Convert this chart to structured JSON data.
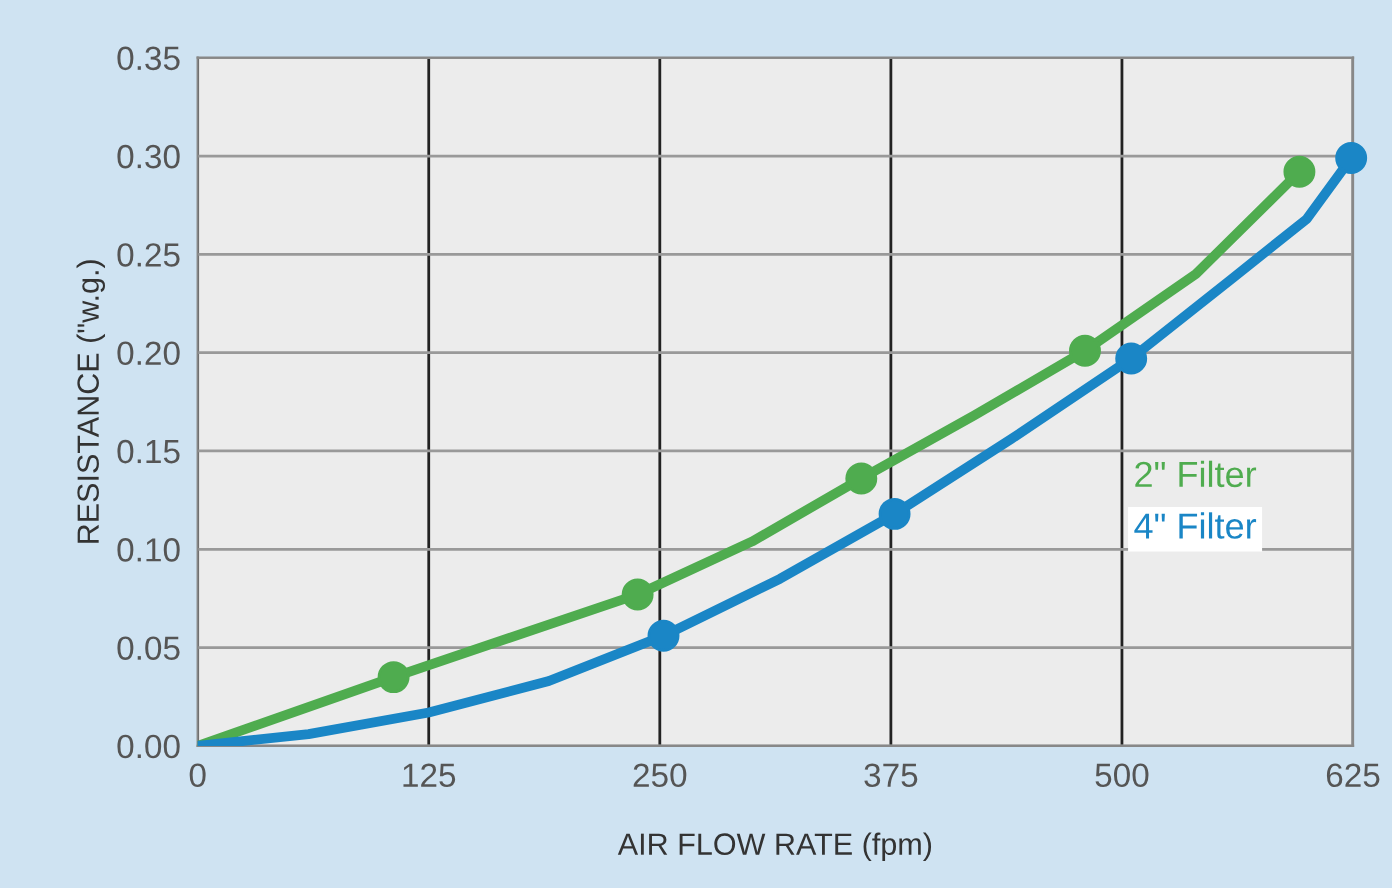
{
  "chart_data": {
    "type": "line",
    "xlabel": "AIR FLOW RATE (fpm)",
    "ylabel": "RESISTANCE (\"w.g.)",
    "xlim": [
      0,
      625
    ],
    "xticks": [
      0,
      125,
      250,
      375,
      500,
      625
    ],
    "ylim": [
      0,
      0.35
    ],
    "yticks": [
      {
        "value": 0,
        "label": "0.00"
      },
      {
        "value": 0.05,
        "label": "0.05"
      },
      {
        "value": 0.1,
        "label": "0.10"
      },
      {
        "value": 0.15,
        "label": "0.15"
      },
      {
        "value": 0.2,
        "label": "0.20"
      },
      {
        "value": 0.25,
        "label": "0.25"
      },
      {
        "value": 0.3,
        "label": "0.30"
      },
      {
        "value": 0.35,
        "label": "0.35"
      }
    ],
    "grid": true,
    "marker": "none",
    "line_style": "solid",
    "series": [
      {
        "name": "2\" Filter",
        "color": "#4fac4f",
        "x": [
          0,
          106,
          238,
          300,
          359,
          420,
          480,
          540,
          596
        ],
        "values": [
          0,
          0.035,
          0.077,
          0.104,
          0.136,
          0.168,
          0.201,
          0.24,
          0.292
        ]
      },
      {
        "name": "4\" Filter",
        "color": "#1a86c6",
        "x": [
          0,
          60,
          125,
          190,
          252,
          315,
          377,
          440,
          505,
          560,
          600,
          624
        ],
        "values": [
          0,
          0.006,
          0.017,
          0.033,
          0.056,
          0.085,
          0.118,
          0.156,
          0.197,
          0.238,
          0.268,
          0.299
        ]
      },
      {
        "type": "scatter",
        "marker": "circle",
        "color": "#4fac4f",
        "x": [
          106,
          238,
          359,
          480,
          596
        ],
        "values": [
          0.035,
          0.077,
          0.136,
          0.201,
          0.292
        ]
      },
      {
        "type": "scatter",
        "marker": "circle",
        "color": "#1a86c6",
        "x": [
          252,
          377,
          505,
          624
        ],
        "values": [
          0.056,
          0.118,
          0.197,
          0.299
        ]
      }
    ]
  }
}
